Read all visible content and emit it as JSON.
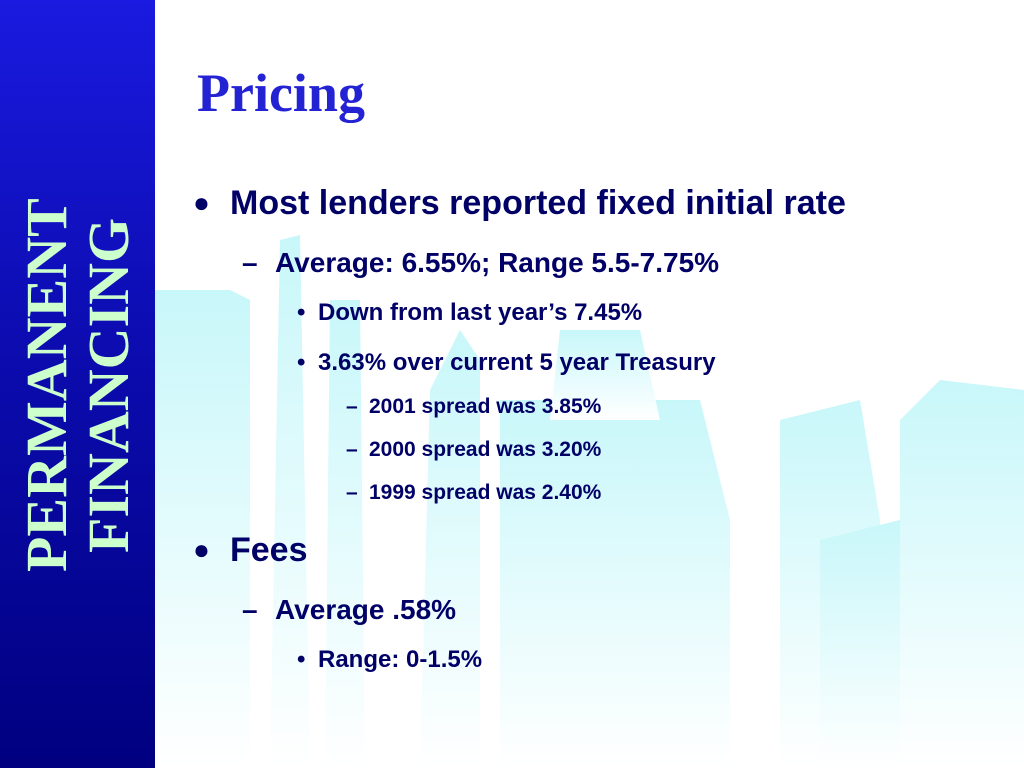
{
  "sidebar": {
    "lines": [
      "PERMANENT",
      "FINANCING"
    ]
  },
  "title": "Pricing",
  "bullets": [
    {
      "text": "Most lenders reported fixed initial rate",
      "children": [
        {
          "text": "Average: 6.55%; Range 5.5-7.75%",
          "children": [
            {
              "text": "Down from last year’s 7.45%"
            },
            {
              "text": "3.63% over current 5 year Treasury",
              "children": [
                {
                  "text": "2001 spread was 3.85%"
                },
                {
                  "text": "2000 spread was 3.20%"
                },
                {
                  "text": "1999 spread was 2.40%"
                }
              ]
            }
          ]
        }
      ]
    },
    {
      "text": "Fees",
      "children": [
        {
          "text": "Average .58%",
          "children": [
            {
              "text": "Range: 0-1.5%"
            }
          ]
        }
      ]
    }
  ]
}
